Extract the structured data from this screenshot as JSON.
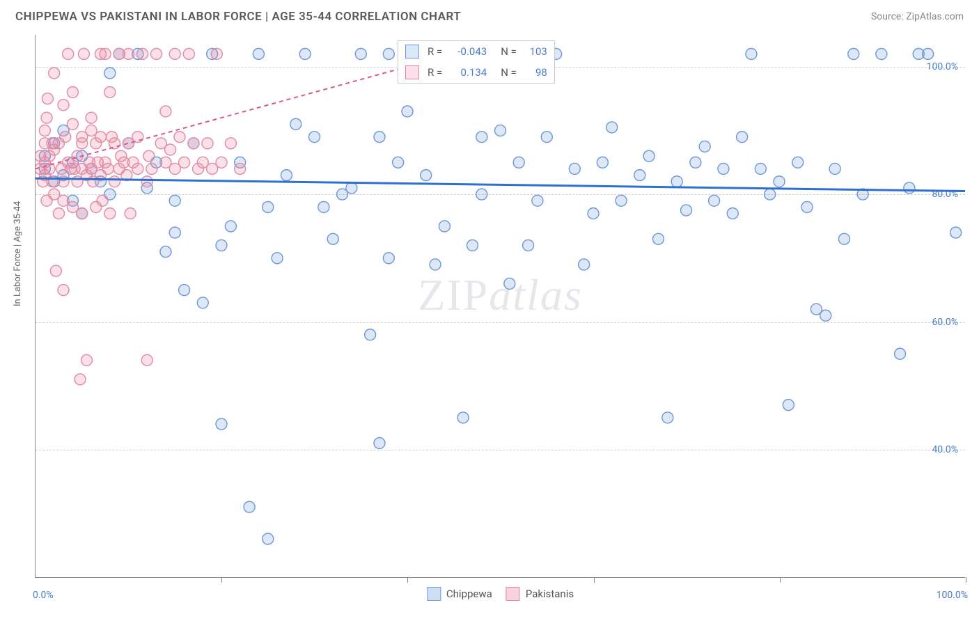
{
  "title": "CHIPPEWA VS PAKISTANI IN LABOR FORCE | AGE 35-44 CORRELATION CHART",
  "source": "Source: ZipAtlas.com",
  "ylabel": "In Labor Force | Age 35-44",
  "watermark_zip": "ZIP",
  "watermark_atlas": "atlas",
  "chart": {
    "type": "scatter",
    "xlim": [
      0,
      100
    ],
    "ylim": [
      20,
      105
    ],
    "y_ticks": [
      40,
      60,
      80,
      100
    ],
    "y_tick_labels": [
      "40.0%",
      "60.0%",
      "80.0%",
      "100.0%"
    ],
    "x_ticks": [
      0,
      20,
      40,
      60,
      80,
      100
    ],
    "x_start_label": "0.0%",
    "x_end_label": "100.0%",
    "background_color": "#ffffff",
    "grid_color": "#d0d0d0",
    "marker_radius": 8,
    "marker_stroke_width": 1.4,
    "series": [
      {
        "name": "Chippewa",
        "fill": "rgba(120,160,220,0.25)",
        "stroke": "#6a98d8",
        "regression": {
          "y_at_x0": 82.5,
          "y_at_x100": 80.5,
          "dash": "",
          "width": 3,
          "color": "#2f6fcf"
        },
        "r": "-0.043",
        "n": "103",
        "points": [
          [
            1,
            84
          ],
          [
            1,
            86
          ],
          [
            2,
            82
          ],
          [
            2,
            88
          ],
          [
            3,
            83
          ],
          [
            3,
            90
          ],
          [
            4,
            85
          ],
          [
            4,
            79
          ],
          [
            5,
            86
          ],
          [
            5,
            77
          ],
          [
            6,
            84
          ],
          [
            7,
            82
          ],
          [
            8,
            99
          ],
          [
            8,
            80
          ],
          [
            9,
            102
          ],
          [
            10,
            88
          ],
          [
            11,
            102
          ],
          [
            12,
            81
          ],
          [
            13,
            85
          ],
          [
            14,
            71
          ],
          [
            15,
            79
          ],
          [
            15,
            74
          ],
          [
            16,
            65
          ],
          [
            17,
            88
          ],
          [
            18,
            63
          ],
          [
            19,
            102
          ],
          [
            20,
            72
          ],
          [
            20,
            44
          ],
          [
            21,
            75
          ],
          [
            22,
            85
          ],
          [
            23,
            31
          ],
          [
            24,
            102
          ],
          [
            25,
            78
          ],
          [
            25,
            26
          ],
          [
            26,
            70
          ],
          [
            27,
            83
          ],
          [
            28,
            91
          ],
          [
            29,
            102
          ],
          [
            30,
            89
          ],
          [
            31,
            78
          ],
          [
            32,
            73
          ],
          [
            33,
            80
          ],
          [
            34,
            81
          ],
          [
            35,
            102
          ],
          [
            36,
            58
          ],
          [
            37,
            89
          ],
          [
            37,
            41
          ],
          [
            38,
            102
          ],
          [
            38,
            70
          ],
          [
            39,
            85
          ],
          [
            40,
            93
          ],
          [
            42,
            83
          ],
          [
            43,
            69
          ],
          [
            44,
            75
          ],
          [
            45,
            102
          ],
          [
            46,
            45
          ],
          [
            47,
            72
          ],
          [
            48,
            89
          ],
          [
            48,
            80
          ],
          [
            50,
            90
          ],
          [
            51,
            66
          ],
          [
            52,
            85
          ],
          [
            53,
            72
          ],
          [
            54,
            79
          ],
          [
            55,
            89
          ],
          [
            56,
            102
          ],
          [
            58,
            84
          ],
          [
            59,
            69
          ],
          [
            60,
            77
          ],
          [
            61,
            85
          ],
          [
            62,
            90.5
          ],
          [
            63,
            79
          ],
          [
            65,
            83
          ],
          [
            66,
            86
          ],
          [
            67,
            73
          ],
          [
            68,
            45
          ],
          [
            69,
            82
          ],
          [
            70,
            77.5
          ],
          [
            71,
            85
          ],
          [
            72,
            87.5
          ],
          [
            73,
            79
          ],
          [
            74,
            84
          ],
          [
            75,
            77
          ],
          [
            76,
            89
          ],
          [
            77,
            102
          ],
          [
            78,
            84
          ],
          [
            79,
            80
          ],
          [
            80,
            82
          ],
          [
            81,
            47
          ],
          [
            82,
            85
          ],
          [
            83,
            78
          ],
          [
            84,
            62
          ],
          [
            85,
            61
          ],
          [
            86,
            84
          ],
          [
            87,
            73
          ],
          [
            88,
            102
          ],
          [
            89,
            80
          ],
          [
            91,
            102
          ],
          [
            93,
            55
          ],
          [
            94,
            81
          ],
          [
            95,
            102
          ],
          [
            96,
            102
          ],
          [
            99,
            74
          ]
        ]
      },
      {
        "name": "Pakistanis",
        "fill": "rgba(235,130,160,0.25)",
        "stroke": "#e28aa5",
        "regression": {
          "y_at_x0": 84,
          "y_at_x45": 102,
          "dash": "6 5",
          "width": 2,
          "color": "#d95a8a"
        },
        "r": "0.134",
        "n": "98",
        "points": [
          [
            0.5,
            84
          ],
          [
            0.5,
            86
          ],
          [
            0.8,
            82
          ],
          [
            1,
            88
          ],
          [
            1,
            83
          ],
          [
            1,
            90
          ],
          [
            1,
            85
          ],
          [
            1.2,
            79
          ],
          [
            1.2,
            92
          ],
          [
            1.3,
            95
          ],
          [
            1.5,
            86
          ],
          [
            1.5,
            84
          ],
          [
            1.8,
            82
          ],
          [
            1.8,
            88
          ],
          [
            2,
            99
          ],
          [
            2,
            80
          ],
          [
            2,
            87
          ],
          [
            2.2,
            68
          ],
          [
            2.5,
            88
          ],
          [
            2.5,
            77
          ],
          [
            2.8,
            84
          ],
          [
            3,
            82
          ],
          [
            3,
            94
          ],
          [
            3,
            79
          ],
          [
            3,
            65
          ],
          [
            3.2,
            89
          ],
          [
            3.5,
            85
          ],
          [
            3.5,
            102
          ],
          [
            3.8,
            84
          ],
          [
            4,
            78
          ],
          [
            4,
            91
          ],
          [
            4,
            96
          ],
          [
            4.2,
            84
          ],
          [
            4.5,
            82
          ],
          [
            4.5,
            86
          ],
          [
            4.8,
            51
          ],
          [
            5,
            88
          ],
          [
            5,
            77
          ],
          [
            5,
            89
          ],
          [
            5,
            84
          ],
          [
            5.2,
            102
          ],
          [
            5.5,
            54
          ],
          [
            5.5,
            83
          ],
          [
            5.8,
            85
          ],
          [
            6,
            90
          ],
          [
            6,
            92
          ],
          [
            6,
            84
          ],
          [
            6.2,
            82
          ],
          [
            6.5,
            88
          ],
          [
            6.5,
            78
          ],
          [
            6.7,
            85
          ],
          [
            7,
            102
          ],
          [
            7,
            89
          ],
          [
            7,
            83
          ],
          [
            7.2,
            79
          ],
          [
            7.5,
            85
          ],
          [
            7.5,
            102
          ],
          [
            7.8,
            84
          ],
          [
            8,
            77
          ],
          [
            8,
            96
          ],
          [
            8.2,
            89
          ],
          [
            8.5,
            88
          ],
          [
            8.5,
            82
          ],
          [
            9,
            102
          ],
          [
            9,
            84
          ],
          [
            9.2,
            86
          ],
          [
            9.5,
            85
          ],
          [
            9.8,
            83
          ],
          [
            10,
            102
          ],
          [
            10,
            88
          ],
          [
            10.2,
            77
          ],
          [
            10.5,
            85
          ],
          [
            11,
            84
          ],
          [
            11,
            89
          ],
          [
            11.5,
            102
          ],
          [
            12,
            82
          ],
          [
            12,
            54
          ],
          [
            12.2,
            86
          ],
          [
            12.5,
            84
          ],
          [
            13,
            102
          ],
          [
            13.5,
            88
          ],
          [
            14,
            85
          ],
          [
            14,
            93
          ],
          [
            14.5,
            87
          ],
          [
            15,
            102
          ],
          [
            15,
            84
          ],
          [
            15.5,
            89
          ],
          [
            16,
            85
          ],
          [
            16.5,
            102
          ],
          [
            17,
            88
          ],
          [
            17.5,
            84
          ],
          [
            18,
            85
          ],
          [
            18.5,
            88
          ],
          [
            19,
            84
          ],
          [
            19.5,
            102
          ],
          [
            20,
            85
          ],
          [
            21,
            88
          ],
          [
            22,
            84
          ]
        ]
      }
    ]
  },
  "legend_bottom": [
    {
      "label": "Chippewa",
      "fill": "rgba(120,160,220,0.35)",
      "stroke": "#6a98d8"
    },
    {
      "label": "Pakistanis",
      "fill": "rgba(235,130,160,0.35)",
      "stroke": "#e28aa5"
    }
  ],
  "stats_legend": {
    "r_label": "R =",
    "n_label": "N ="
  }
}
